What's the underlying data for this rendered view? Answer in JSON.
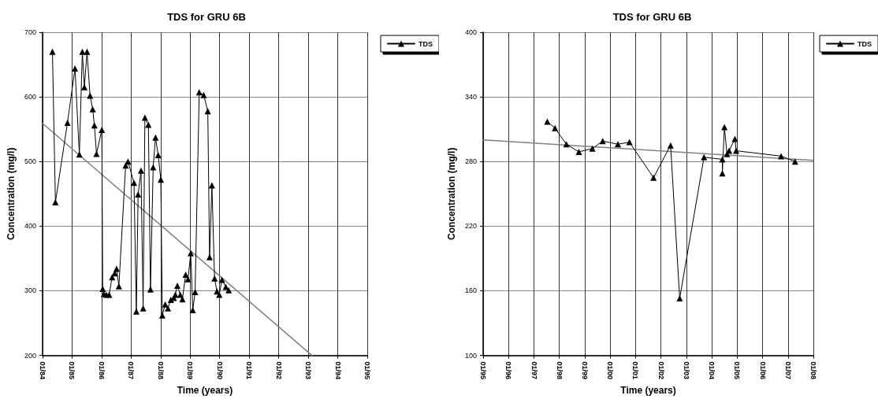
{
  "chart_data": [
    {
      "type": "line",
      "title": "TDS for GRU 6B",
      "xlabel": "Time (years)",
      "ylabel": "Concentration (mg/l)",
      "x": [
        "1984-05-03",
        "1984-06-09",
        "1984-11-05",
        "1985-02-06",
        "1985-04-01",
        "1985-05-08",
        "1985-06-02",
        "1985-07-05",
        "1985-08-11",
        "1985-09-13",
        "1985-10-04",
        "1985-10-30",
        "1986-01-04",
        "1986-01-15",
        "1986-01-29",
        "1986-03-01",
        "1986-04-05",
        "1986-05-11",
        "1986-06-12",
        "1986-07-05",
        "1986-08-03",
        "1986-10-26",
        "1986-11-24",
        "1987-02-06",
        "1987-03-07",
        "1987-03-29",
        "1987-05-04",
        "1987-05-30",
        "1987-06-21",
        "1987-08-03",
        "1987-08-29",
        "1987-10-01",
        "1987-10-30",
        "1987-12-02",
        "1988-01-04",
        "1988-01-22",
        "1988-02-27",
        "1988-04-01",
        "1988-05-07",
        "1988-06-12",
        "1988-07-01",
        "1988-07-27",
        "1988-09-01",
        "1988-09-27",
        "1988-11-06",
        "1988-12-05",
        "1989-01-08",
        "1989-02-02",
        "1989-03-03",
        "1989-04-23",
        "1989-06-17",
        "1989-08-07",
        "1989-08-29",
        "1989-09-27",
        "1989-10-30",
        "1989-11-28",
        "1989-12-27",
        "1990-01-29",
        "1990-03-18",
        "1990-04-23"
      ],
      "series": [
        {
          "name": "TDS",
          "color": "#000000",
          "values": [
            670,
            437,
            560,
            644,
            511,
            670,
            615,
            670,
            602,
            581,
            556,
            512,
            549,
            303,
            295,
            294,
            294,
            321,
            327,
            334,
            307,
            494,
            500,
            467,
            268,
            449,
            486,
            273,
            568,
            557,
            302,
            491,
            537,
            510,
            472,
            262,
            279,
            273,
            286,
            289,
            294,
            308,
            294,
            287,
            325,
            318,
            358,
            270,
            298,
            607,
            603,
            578,
            352,
            463,
            319,
            299,
            294,
            317,
            306,
            301
          ]
        },
        {
          "type": "line",
          "color": "#808080",
          "marker": "none",
          "x": [
            "1984-01-01",
            "1993-02-15"
          ],
          "values": [
            559,
            200
          ]
        }
      ],
      "xlim": [
        "1984-01-01",
        "1995-01-01"
      ],
      "xticks": [
        {
          "value": "1984-01-01",
          "label": "01/84"
        },
        {
          "value": "1985-01-01",
          "label": "01/85"
        },
        {
          "value": "1986-01-01",
          "label": "01/86"
        },
        {
          "value": "1987-01-01",
          "label": "01/87"
        },
        {
          "value": "1988-01-01",
          "label": "01/88"
        },
        {
          "value": "1989-01-01",
          "label": "01/89"
        },
        {
          "value": "1990-01-01",
          "label": "01/90"
        },
        {
          "value": "1991-01-01",
          "label": "01/91"
        },
        {
          "value": "1992-01-01",
          "label": "01/92"
        },
        {
          "value": "1993-01-01",
          "label": "01/93"
        },
        {
          "value": "1994-01-01",
          "label": "01/94"
        },
        {
          "value": "1995-01-01",
          "label": "01/95"
        }
      ],
      "ylim": [
        200,
        700
      ],
      "yticks": [
        200,
        300,
        400,
        500,
        600,
        700
      ],
      "grid": true,
      "legend": "top right",
      "marker": "triangle"
    },
    {
      "type": "line",
      "title": "TDS for GRU 6B",
      "xlabel": "Time (years)",
      "ylabel": "Concentration (mg/l)",
      "x": [
        "1997-07-12",
        "1997-10-30",
        "1998-04-12",
        "1998-10-08",
        "1999-04-20",
        "1999-09-16",
        "2000-04-22",
        "2000-10-04",
        "2001-09-16",
        "2002-05-19",
        "2002-09-27",
        "2003-09-12",
        "2004-06-01",
        "2004-06-01",
        "2004-07-01",
        "2004-08-07",
        "2004-09-06",
        "2004-11-29",
        "2004-12-17",
        "2006-09-24",
        "2007-04-13"
      ],
      "series": [
        {
          "name": "TDS",
          "color": "#000000",
          "values": [
            317,
            311,
            296,
            289,
            292,
            299,
            296,
            298,
            265,
            295,
            153,
            284,
            282,
            269,
            312,
            287,
            290,
            301,
            290,
            285,
            280
          ]
        },
        {
          "type": "line",
          "color": "#808080",
          "marker": "none",
          "x": [
            "1995-01-01",
            "2008-01-01"
          ],
          "values": [
            300,
            281
          ]
        }
      ],
      "xlim": [
        "1995-01-01",
        "2008-01-01"
      ],
      "xticks": [
        {
          "value": "1995-01-01",
          "label": "01/95"
        },
        {
          "value": "1996-01-01",
          "label": "01/96"
        },
        {
          "value": "1997-01-01",
          "label": "01/97"
        },
        {
          "value": "1998-01-01",
          "label": "01/98"
        },
        {
          "value": "1999-01-01",
          "label": "01/99"
        },
        {
          "value": "2000-01-01",
          "label": "01/00"
        },
        {
          "value": "2001-01-01",
          "label": "01/01"
        },
        {
          "value": "2002-01-01",
          "label": "01/02"
        },
        {
          "value": "2003-01-01",
          "label": "01/03"
        },
        {
          "value": "2004-01-01",
          "label": "01/04"
        },
        {
          "value": "2005-01-01",
          "label": "01/05"
        },
        {
          "value": "2006-01-01",
          "label": "01/06"
        },
        {
          "value": "2007-01-01",
          "label": "01/07"
        },
        {
          "value": "2008-01-01",
          "label": "01/08"
        }
      ],
      "ylim": [
        100,
        400
      ],
      "yticks": [
        100,
        160,
        220,
        280,
        340,
        400
      ],
      "grid": true,
      "legend": "top right",
      "marker": "triangle"
    }
  ]
}
